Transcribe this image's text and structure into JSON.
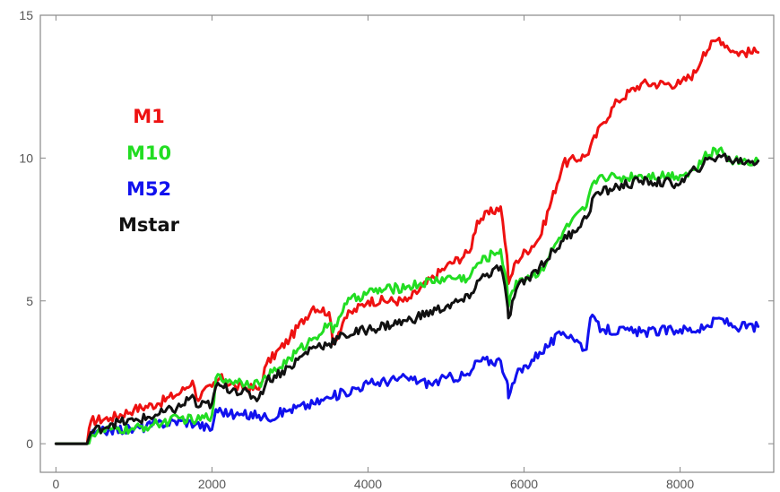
{
  "chart_data": {
    "type": "line",
    "title": "",
    "xlabel": "",
    "ylabel": "",
    "xlim": [
      -200,
      9200
    ],
    "ylim": [
      -1,
      15
    ],
    "x_ticks": [
      0,
      2000,
      4000,
      6000,
      8000
    ],
    "x_tick_labels": [
      "0",
      "2000",
      "4000",
      "6000",
      "8000"
    ],
    "y_ticks": [
      0,
      5,
      10,
      15
    ],
    "y_tick_labels": [
      "0",
      "5",
      "10",
      "15"
    ],
    "grid": false,
    "legend_position": "left",
    "series": [
      {
        "name": "M1",
        "color": "#ee1111",
        "points": [
          [
            0,
            0.0
          ],
          [
            200,
            0.0
          ],
          [
            400,
            0.0
          ],
          [
            450,
            0.8
          ],
          [
            700,
            0.9
          ],
          [
            1000,
            1.2
          ],
          [
            1300,
            1.4
          ],
          [
            1600,
            1.8
          ],
          [
            1750,
            2.2
          ],
          [
            1800,
            1.6
          ],
          [
            2000,
            2.0
          ],
          [
            2100,
            2.3
          ],
          [
            2300,
            2.0
          ],
          [
            2600,
            1.9
          ],
          [
            2700,
            2.8
          ],
          [
            3000,
            3.7
          ],
          [
            3300,
            4.8
          ],
          [
            3500,
            4.6
          ],
          [
            3550,
            3.5
          ],
          [
            3700,
            4.4
          ],
          [
            4000,
            5.0
          ],
          [
            4500,
            5.0
          ],
          [
            5000,
            6.2
          ],
          [
            5300,
            6.7
          ],
          [
            5400,
            7.8
          ],
          [
            5700,
            8.3
          ],
          [
            5780,
            6.6
          ],
          [
            5800,
            5.6
          ],
          [
            5900,
            6.4
          ],
          [
            6200,
            7.2
          ],
          [
            6500,
            9.8
          ],
          [
            6800,
            10.1
          ],
          [
            7000,
            11.2
          ],
          [
            7200,
            12.0
          ],
          [
            7500,
            12.6
          ],
          [
            8000,
            12.6
          ],
          [
            8200,
            13.0
          ],
          [
            8300,
            13.7
          ],
          [
            8500,
            14.2
          ],
          [
            8700,
            13.7
          ],
          [
            9000,
            13.7
          ]
        ]
      },
      {
        "name": "M10",
        "color": "#22dd22",
        "points": [
          [
            0,
            0.0
          ],
          [
            200,
            0.0
          ],
          [
            400,
            0.0
          ],
          [
            450,
            0.3
          ],
          [
            700,
            0.5
          ],
          [
            1000,
            0.5
          ],
          [
            1300,
            0.7
          ],
          [
            1600,
            0.9
          ],
          [
            1800,
            0.8
          ],
          [
            2000,
            1.0
          ],
          [
            2050,
            2.3
          ],
          [
            2300,
            2.2
          ],
          [
            2600,
            2.1
          ],
          [
            2700,
            2.3
          ],
          [
            3000,
            3.0
          ],
          [
            3300,
            3.7
          ],
          [
            3500,
            4.2
          ],
          [
            3550,
            3.9
          ],
          [
            3700,
            4.9
          ],
          [
            4000,
            5.3
          ],
          [
            4500,
            5.5
          ],
          [
            5000,
            5.8
          ],
          [
            5300,
            5.8
          ],
          [
            5400,
            6.3
          ],
          [
            5700,
            6.8
          ],
          [
            5780,
            5.6
          ],
          [
            5800,
            4.8
          ],
          [
            5900,
            5.7
          ],
          [
            6200,
            6.0
          ],
          [
            6500,
            7.4
          ],
          [
            6800,
            8.3
          ],
          [
            6900,
            9.2
          ],
          [
            7000,
            9.4
          ],
          [
            7200,
            9.3
          ],
          [
            7500,
            9.4
          ],
          [
            8000,
            9.4
          ],
          [
            8200,
            9.6
          ],
          [
            8300,
            10.0
          ],
          [
            8500,
            10.3
          ],
          [
            8700,
            9.9
          ],
          [
            9000,
            9.9
          ]
        ]
      },
      {
        "name": "M52",
        "color": "#1111ee",
        "points": [
          [
            0,
            0.0
          ],
          [
            200,
            0.0
          ],
          [
            400,
            0.0
          ],
          [
            450,
            0.3
          ],
          [
            700,
            0.5
          ],
          [
            1000,
            0.5
          ],
          [
            1300,
            0.7
          ],
          [
            1600,
            0.8
          ],
          [
            1800,
            0.7
          ],
          [
            2000,
            0.5
          ],
          [
            2050,
            1.2
          ],
          [
            2300,
            1.0
          ],
          [
            2600,
            1.0
          ],
          [
            2700,
            0.9
          ],
          [
            3000,
            1.2
          ],
          [
            3300,
            1.4
          ],
          [
            3500,
            1.6
          ],
          [
            3700,
            1.8
          ],
          [
            4000,
            2.1
          ],
          [
            4500,
            2.3
          ],
          [
            4800,
            2.1
          ],
          [
            5000,
            2.3
          ],
          [
            5300,
            2.4
          ],
          [
            5400,
            2.9
          ],
          [
            5700,
            2.9
          ],
          [
            5780,
            2.2
          ],
          [
            5800,
            1.6
          ],
          [
            5900,
            2.4
          ],
          [
            6200,
            3.2
          ],
          [
            6500,
            3.9
          ],
          [
            6600,
            3.8
          ],
          [
            6800,
            3.3
          ],
          [
            6850,
            4.4
          ],
          [
            7000,
            4.0
          ],
          [
            7500,
            3.9
          ],
          [
            8000,
            4.0
          ],
          [
            8300,
            4.0
          ],
          [
            8500,
            4.4
          ],
          [
            8700,
            4.1
          ],
          [
            9000,
            4.1
          ]
        ]
      },
      {
        "name": "Mstar",
        "color": "#111111",
        "points": [
          [
            0,
            0.0
          ],
          [
            200,
            0.0
          ],
          [
            400,
            0.0
          ],
          [
            450,
            0.4
          ],
          [
            700,
            0.7
          ],
          [
            1000,
            0.8
          ],
          [
            1300,
            1.0
          ],
          [
            1600,
            1.3
          ],
          [
            1750,
            1.7
          ],
          [
            1800,
            1.3
          ],
          [
            2000,
            1.4
          ],
          [
            2050,
            2.0
          ],
          [
            2300,
            1.9
          ],
          [
            2600,
            1.6
          ],
          [
            2700,
            2.2
          ],
          [
            3000,
            2.7
          ],
          [
            3300,
            3.4
          ],
          [
            3500,
            3.5
          ],
          [
            3700,
            3.8
          ],
          [
            4000,
            4.0
          ],
          [
            4500,
            4.3
          ],
          [
            5000,
            4.8
          ],
          [
            5300,
            5.1
          ],
          [
            5400,
            5.7
          ],
          [
            5700,
            6.2
          ],
          [
            5780,
            5.0
          ],
          [
            5800,
            4.4
          ],
          [
            5900,
            5.4
          ],
          [
            6200,
            6.2
          ],
          [
            6500,
            7.1
          ],
          [
            6800,
            7.9
          ],
          [
            6900,
            8.7
          ],
          [
            7000,
            8.8
          ],
          [
            7200,
            9.0
          ],
          [
            7500,
            9.2
          ],
          [
            8000,
            9.1
          ],
          [
            8200,
            9.6
          ],
          [
            8300,
            9.8
          ],
          [
            8500,
            10.1
          ],
          [
            8700,
            9.9
          ],
          [
            9000,
            9.9
          ]
        ]
      }
    ]
  }
}
